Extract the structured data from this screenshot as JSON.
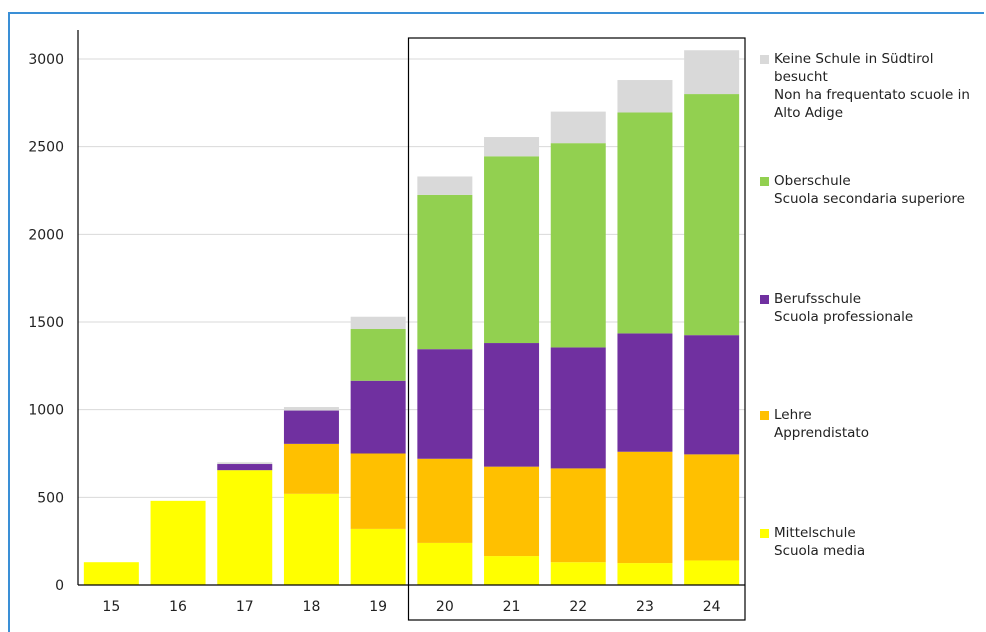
{
  "chart_data": {
    "type": "bar",
    "stacked": true,
    "categories": [
      "15",
      "16",
      "17",
      "18",
      "19",
      "20",
      "21",
      "22",
      "23",
      "24"
    ],
    "ylim": [
      0,
      3200
    ],
    "yticks": [
      0,
      500,
      1000,
      1500,
      2000,
      2500,
      3000
    ],
    "grid": true,
    "legend_position": "right",
    "highlight_categories": [
      "20",
      "21",
      "22",
      "23",
      "24"
    ],
    "series": [
      {
        "name": "Mittelschule / Scuola media",
        "color": "#ffff00",
        "values": [
          130,
          480,
          655,
          520,
          320,
          240,
          165,
          130,
          125,
          140
        ]
      },
      {
        "name": "Lehre / Apprendistato",
        "color": "#ffc000",
        "values": [
          0,
          0,
          0,
          285,
          430,
          480,
          510,
          535,
          635,
          605
        ]
      },
      {
        "name": "Berufsschule / Scuola professionale",
        "color": "#7030a0",
        "values": [
          0,
          0,
          35,
          190,
          415,
          625,
          705,
          690,
          675,
          680
        ]
      },
      {
        "name": "Oberschule / Scuola secondaria superiore",
        "color": "#92d050",
        "values": [
          0,
          0,
          0,
          0,
          295,
          880,
          1065,
          1165,
          1260,
          1375
        ]
      },
      {
        "name": "Keine Schule in Südtirol besucht / Non ha frequentato scuole in Alto Adige",
        "color": "#d9d9d9",
        "values": [
          0,
          0,
          10,
          20,
          70,
          105,
          110,
          180,
          185,
          250
        ]
      }
    ]
  },
  "legend": [
    {
      "color": "#d9d9d9",
      "line1": "Keine Schule in Südtirol besucht",
      "line2": "Non ha frequentato scuole in",
      "line3": "Alto Adige"
    },
    {
      "color": "#92d050",
      "line1": "Oberschule",
      "line2": "Scuola secondaria superiore",
      "line3": ""
    },
    {
      "color": "#7030a0",
      "line1": "Berufsschule",
      "line2": "Scuola professionale",
      "line3": ""
    },
    {
      "color": "#ffc000",
      "line1": "Lehre",
      "line2": "Apprendistato",
      "line3": ""
    },
    {
      "color": "#ffff00",
      "line1": "Mittelschule",
      "line2": "Scuola media",
      "line3": ""
    }
  ]
}
